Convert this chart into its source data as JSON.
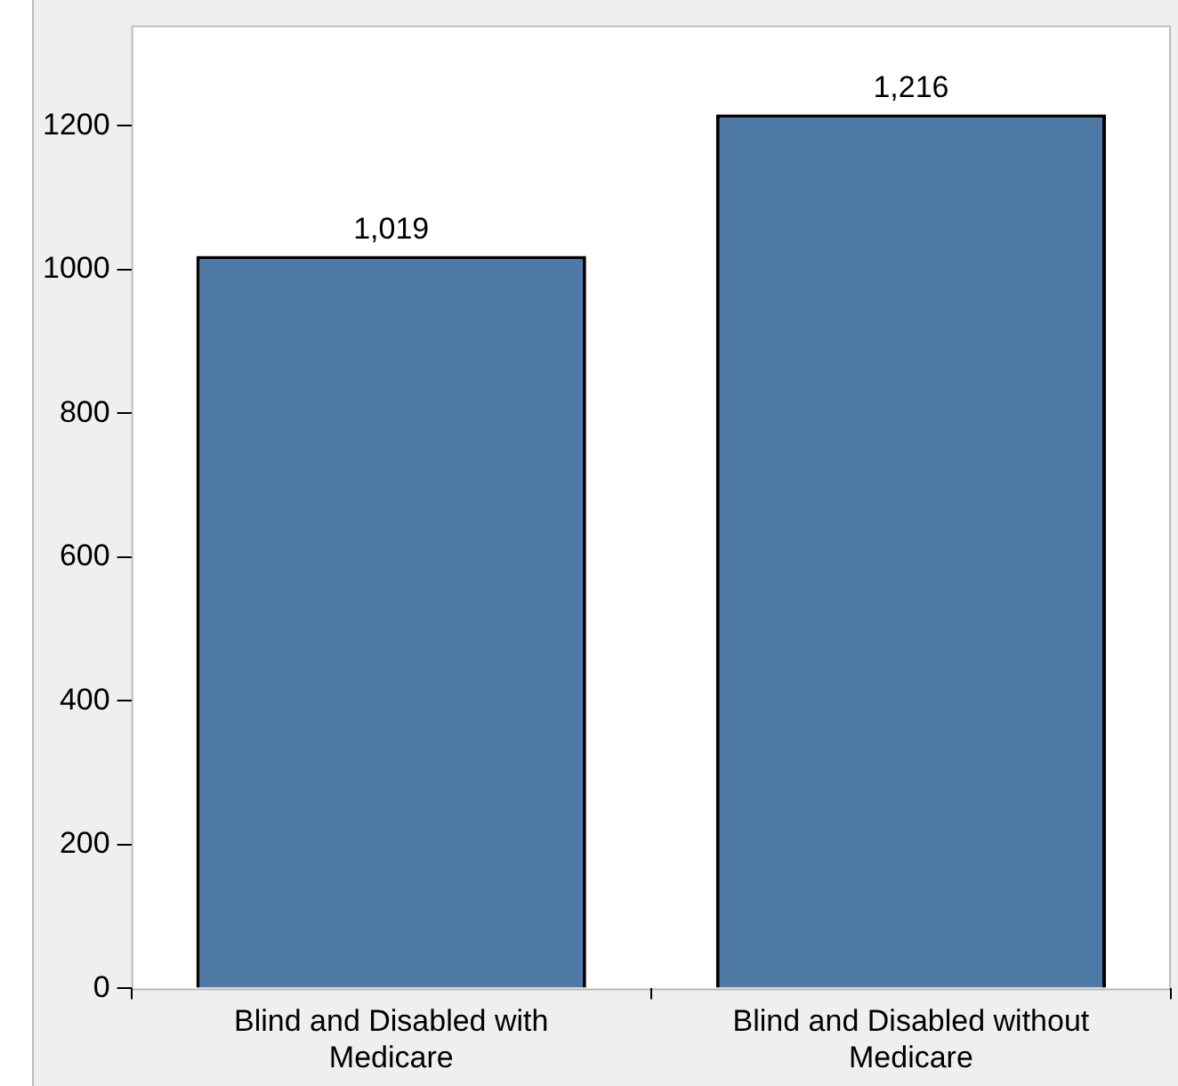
{
  "chart_data": {
    "type": "bar",
    "categories": [
      "Blind and Disabled with Medicare",
      "Blind and Disabled without Medicare"
    ],
    "values": [
      1019,
      1216
    ],
    "value_labels": [
      "1,019",
      "1,216"
    ],
    "color": "#4e79a7",
    "ylim": [
      0,
      1340
    ],
    "yticks": [
      0,
      200,
      400,
      600,
      800,
      1000,
      1200
    ],
    "grid": false,
    "legend": false
  }
}
